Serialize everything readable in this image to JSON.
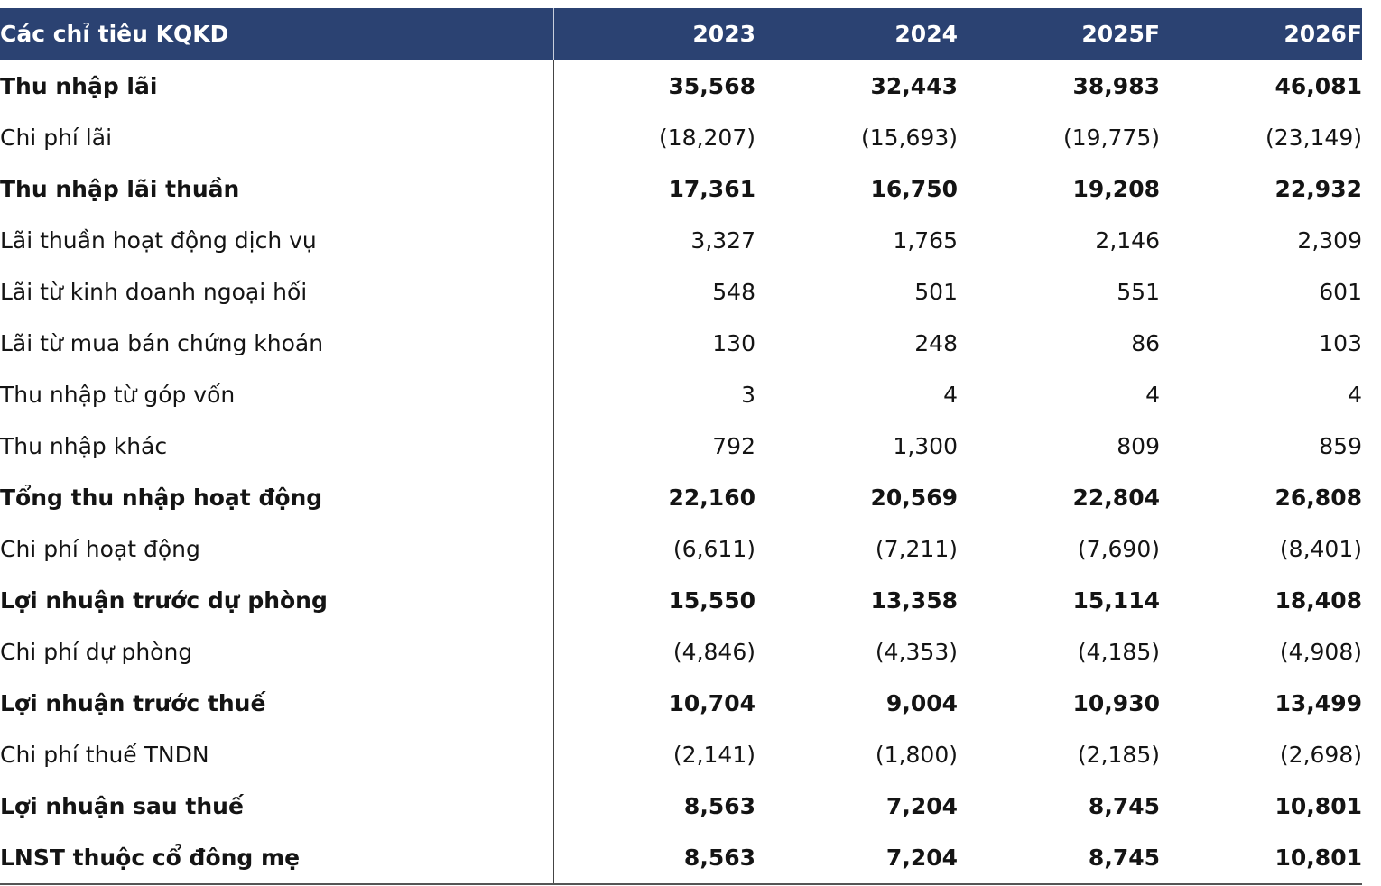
{
  "table": {
    "header": [
      "Các chỉ tiêu KQKD",
      "2023",
      "2024",
      "2025F",
      "2026F"
    ],
    "rows": [
      [
        "Thu nhập lãi",
        "35,568",
        "32,443",
        "38,983",
        "46,081"
      ],
      [
        "Chi phí lãi",
        "(18,207)",
        "(15,693)",
        "(19,775)",
        "(23,149)"
      ],
      [
        "Thu nhập lãi thuần",
        "17,361",
        "16,750",
        "19,208",
        "22,932"
      ],
      [
        "Lãi thuần hoạt động dịch vụ",
        "3,327",
        "1,765",
        "2,146",
        "2,309"
      ],
      [
        "Lãi từ kinh doanh ngoại hối",
        "548",
        "501",
        "551",
        "601"
      ],
      [
        "Lãi từ mua bán chứng khoán",
        "130",
        "248",
        "86",
        "103"
      ],
      [
        "Thu nhập từ góp vốn",
        "3",
        "4",
        "4",
        "4"
      ],
      [
        "Thu nhập khác",
        "792",
        "1,300",
        "809",
        "859"
      ],
      [
        "Tổng thu nhập hoạt động",
        "22,160",
        "20,569",
        "22,804",
        "26,808"
      ],
      [
        "Chi phí hoạt động",
        "(6,611)",
        "(7,211)",
        "(7,690)",
        "(8,401)"
      ],
      [
        "Lợi nhuận trước dự phòng",
        "15,550",
        "13,358",
        "15,114",
        "18,408"
      ],
      [
        "Chi phí dự phòng",
        "(4,846)",
        "(4,353)",
        "(4,185)",
        "(4,908)"
      ],
      [
        "Lợi nhuận trước thuế",
        "10,704",
        "9,004",
        "10,930",
        "13,499"
      ],
      [
        "Chi phí thuế TNDN",
        "(2,141)",
        "(1,800)",
        "(2,185)",
        "(2,698)"
      ],
      [
        "Lợi nhuận sau thuế",
        "8,563",
        "7,204",
        "8,745",
        "10,801"
      ],
      [
        "LNST thuộc cổ đông mẹ",
        "8,563",
        "7,204",
        "8,745",
        "10,801"
      ]
    ]
  }
}
